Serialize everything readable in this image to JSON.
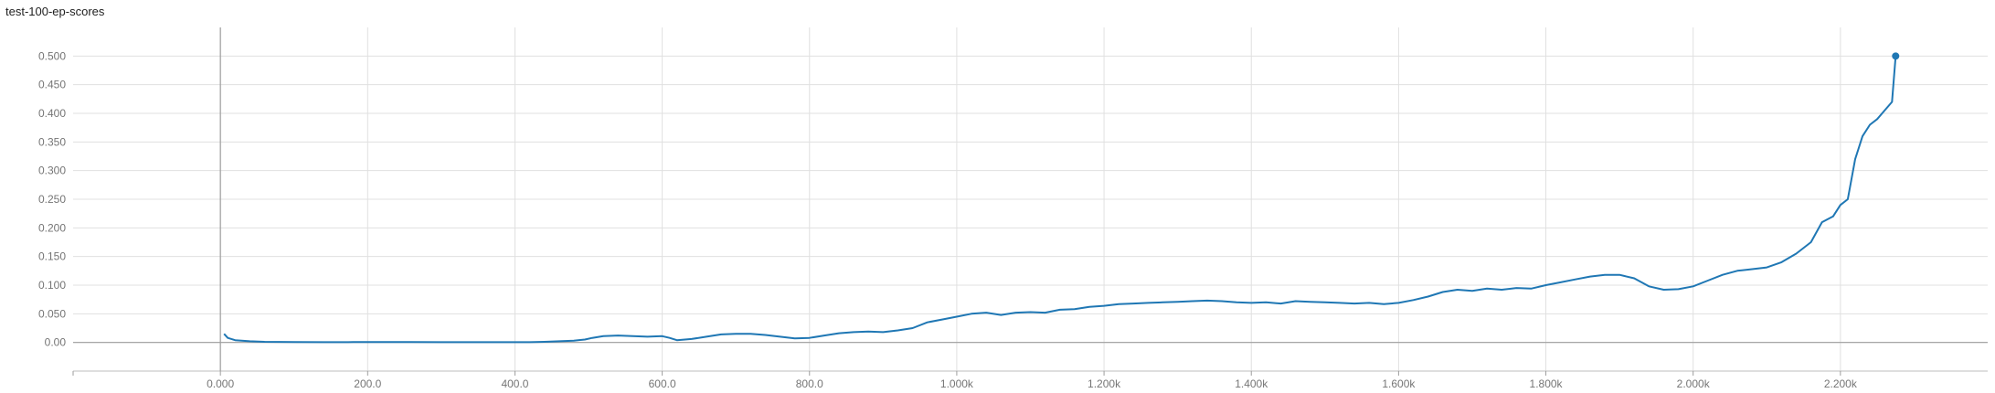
{
  "chart_data": {
    "type": "line",
    "title": "test-100-ep-scores",
    "xlabel": "",
    "ylabel": "",
    "xlim": [
      -200,
      2400
    ],
    "ylim": [
      -0.05,
      0.55
    ],
    "grid": true,
    "legend": "none",
    "x_ticks": [
      {
        "value": 0,
        "label": "0.000"
      },
      {
        "value": 200,
        "label": "200.0"
      },
      {
        "value": 400,
        "label": "400.0"
      },
      {
        "value": 600,
        "label": "600.0"
      },
      {
        "value": 800,
        "label": "800.0"
      },
      {
        "value": 1000,
        "label": "1.000k"
      },
      {
        "value": 1200,
        "label": "1.200k"
      },
      {
        "value": 1400,
        "label": "1.400k"
      },
      {
        "value": 1600,
        "label": "1.600k"
      },
      {
        "value": 1800,
        "label": "1.800k"
      },
      {
        "value": 2000,
        "label": "2.000k"
      },
      {
        "value": 2200,
        "label": "2.200k"
      }
    ],
    "y_ticks": [
      {
        "value": 0.0,
        "label": "0.00"
      },
      {
        "value": 0.05,
        "label": "0.050"
      },
      {
        "value": 0.1,
        "label": "0.100"
      },
      {
        "value": 0.15,
        "label": "0.150"
      },
      {
        "value": 0.2,
        "label": "0.200"
      },
      {
        "value": 0.25,
        "label": "0.250"
      },
      {
        "value": 0.3,
        "label": "0.300"
      },
      {
        "value": 0.35,
        "label": "0.350"
      },
      {
        "value": 0.4,
        "label": "0.400"
      },
      {
        "value": 0.45,
        "label": "0.450"
      },
      {
        "value": 0.5,
        "label": "0.500"
      }
    ],
    "series": [
      {
        "color": "#1f77b4",
        "x": [
          5,
          10,
          20,
          40,
          60,
          100,
          140,
          180,
          220,
          260,
          300,
          340,
          380,
          420,
          440,
          460,
          480,
          495,
          505,
          520,
          540,
          560,
          580,
          600,
          610,
          620,
          640,
          660,
          680,
          700,
          720,
          740,
          760,
          780,
          800,
          820,
          840,
          860,
          880,
          900,
          920,
          940,
          960,
          980,
          1000,
          1020,
          1040,
          1060,
          1080,
          1100,
          1120,
          1140,
          1160,
          1180,
          1200,
          1220,
          1240,
          1260,
          1280,
          1300,
          1320,
          1340,
          1360,
          1380,
          1400,
          1420,
          1440,
          1460,
          1480,
          1500,
          1520,
          1540,
          1560,
          1580,
          1600,
          1620,
          1640,
          1660,
          1680,
          1700,
          1720,
          1740,
          1760,
          1780,
          1800,
          1820,
          1840,
          1860,
          1880,
          1900,
          1920,
          1940,
          1960,
          1980,
          2000,
          2020,
          2040,
          2060,
          2080,
          2100,
          2120,
          2140,
          2160,
          2175,
          2190,
          2200,
          2210,
          2220,
          2230,
          2240,
          2250,
          2260,
          2270,
          2275
        ],
        "y": [
          0.015,
          0.008,
          0.004,
          0.002,
          0.001,
          0.0008,
          0.0005,
          0.0006,
          0.0008,
          0.0008,
          0.0005,
          0.0004,
          0.0005,
          0.0005,
          0.001,
          0.002,
          0.003,
          0.005,
          0.008,
          0.011,
          0.012,
          0.011,
          0.01,
          0.011,
          0.008,
          0.004,
          0.006,
          0.01,
          0.014,
          0.015,
          0.015,
          0.013,
          0.01,
          0.007,
          0.008,
          0.012,
          0.016,
          0.018,
          0.019,
          0.018,
          0.021,
          0.025,
          0.035,
          0.04,
          0.045,
          0.05,
          0.052,
          0.048,
          0.052,
          0.053,
          0.052,
          0.057,
          0.058,
          0.062,
          0.064,
          0.067,
          0.068,
          0.069,
          0.07,
          0.071,
          0.072,
          0.073,
          0.072,
          0.07,
          0.069,
          0.07,
          0.068,
          0.072,
          0.071,
          0.07,
          0.069,
          0.068,
          0.069,
          0.067,
          0.069,
          0.074,
          0.08,
          0.088,
          0.092,
          0.09,
          0.094,
          0.092,
          0.095,
          0.094,
          0.1,
          0.105,
          0.11,
          0.115,
          0.118,
          0.118,
          0.112,
          0.098,
          0.092,
          0.093,
          0.098,
          0.108,
          0.118,
          0.125,
          0.128,
          0.131,
          0.14,
          0.155,
          0.175,
          0.21,
          0.22,
          0.24,
          0.25,
          0.32,
          0.36,
          0.38,
          0.39,
          0.405,
          0.42,
          0.5
        ]
      }
    ]
  }
}
